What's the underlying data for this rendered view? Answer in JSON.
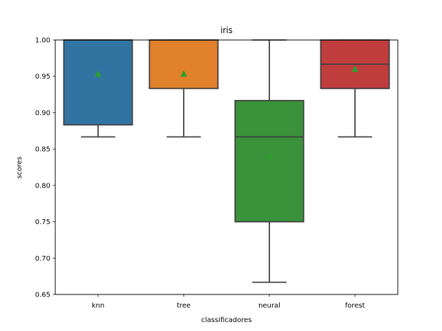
{
  "chart_data": {
    "type": "box",
    "title": "iris",
    "xlabel": "classificadores",
    "ylabel": "scores",
    "ylim": [
      0.65,
      1.0
    ],
    "yticks": [
      "0.65",
      "0.70",
      "0.75",
      "0.80",
      "0.85",
      "0.90",
      "0.95",
      "1.00"
    ],
    "grid": false,
    "categories": [
      "knn",
      "tree",
      "neural",
      "forest"
    ],
    "boxes": [
      {
        "category": "knn",
        "whisker_low": 0.8667,
        "q1": 0.8833,
        "median": 1.0,
        "q3": 1.0,
        "whisker_high": 1.0,
        "mean": 0.9533,
        "color": "#3274a1"
      },
      {
        "category": "tree",
        "whisker_low": 0.8667,
        "q1": 0.9333,
        "median": 1.0,
        "q3": 1.0,
        "whisker_high": 1.0,
        "mean": 0.9533,
        "color": "#e1812c"
      },
      {
        "category": "neural",
        "whisker_low": 0.6667,
        "q1": 0.75,
        "median": 0.8667,
        "q3": 0.9167,
        "whisker_high": 1.0,
        "mean": 0.84,
        "color": "#3a923a"
      },
      {
        "category": "forest",
        "whisker_low": 0.8667,
        "q1": 0.9333,
        "median": 0.9667,
        "q3": 1.0,
        "whisker_high": 1.0,
        "mean": 0.96,
        "color": "#c03d3e"
      }
    ],
    "mean_marker_color": "#2ca02c",
    "line_color": "#3f3f3f"
  }
}
